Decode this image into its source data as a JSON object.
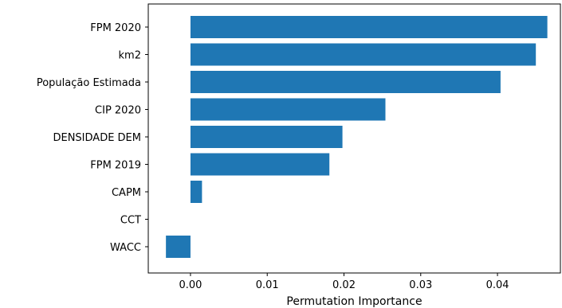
{
  "chart_data": {
    "type": "bar",
    "orientation": "horizontal",
    "categories": [
      "FPM 2020",
      "km2",
      "População Estimada",
      "CIP 2020",
      "DENSIDADE DEM",
      "FPM 2019",
      "CAPM",
      "CCT",
      "WACC"
    ],
    "values": [
      0.0465,
      0.045,
      0.0404,
      0.0254,
      0.0198,
      0.0181,
      0.0015,
      0.0,
      -0.0032
    ],
    "xlabel": "Permutation Importance",
    "ylabel": "",
    "title": "",
    "xlim": [
      -0.0055,
      0.0482
    ],
    "xticks": [
      0.0,
      0.01,
      0.02,
      0.03,
      0.04
    ],
    "xtick_labels": [
      "0.00",
      "0.01",
      "0.02",
      "0.03",
      "0.04"
    ],
    "grid": false,
    "bar_color": "#1f77b4"
  }
}
